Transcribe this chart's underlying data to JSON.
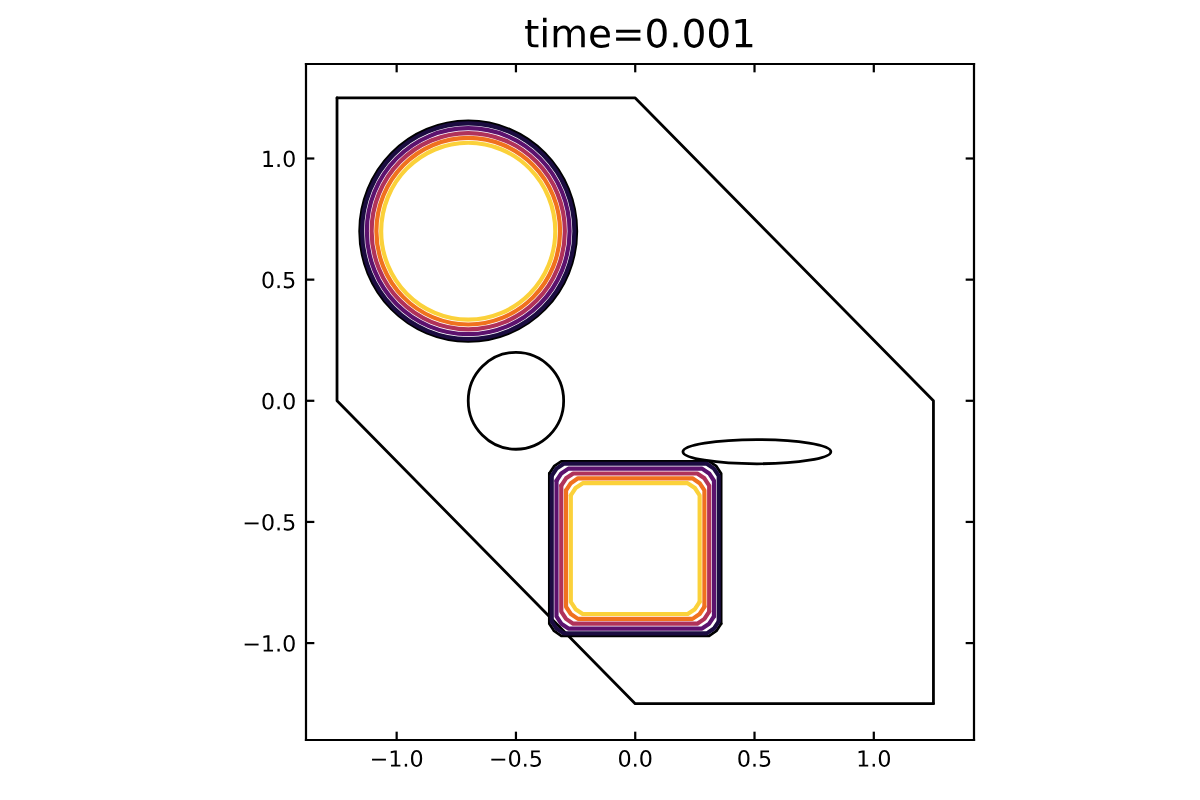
{
  "chart_data": {
    "type": "line",
    "title": "time=0.001",
    "xlim": [
      -1.38,
      1.42
    ],
    "ylim": [
      -1.4,
      1.39
    ],
    "xticks": [
      {
        "value": -1,
        "label": "−1.0"
      },
      {
        "value": -0.5,
        "label": "−0.5"
      },
      {
        "value": 0,
        "label": "0.0"
      },
      {
        "value": 0.5,
        "label": "0.5"
      },
      {
        "value": 1,
        "label": "1.0"
      }
    ],
    "yticks": [
      {
        "value": -1,
        "label": "−1.0"
      },
      {
        "value": -0.5,
        "label": "−0.5"
      },
      {
        "value": 0,
        "label": "0.0"
      },
      {
        "value": 0.5,
        "label": "0.5"
      },
      {
        "value": 1,
        "label": "1.0"
      }
    ],
    "grid": false,
    "series": [
      {
        "color": "#000000",
        "x": [
          -1.25,
          0,
          1.25,
          1.25
        ],
        "values": [
          1.25,
          1.25,
          0,
          -1.25
        ]
      },
      {
        "color": "#000000",
        "x": [
          1.25,
          0,
          -1.25,
          -1.25
        ],
        "values": [
          -1.25,
          -1.25,
          0,
          1.25
        ]
      },
      {
        "color": "#000000",
        "x": [
          0.36,
          0.36,
          0.34,
          0.31,
          -0.31,
          -0.34,
          -0.36
        ],
        "values": [
          -0.92,
          -0.3,
          -0.27,
          -0.25,
          -0.25,
          -0.27,
          -0.3
        ]
      },
      {
        "color": "#000000",
        "x": [
          -0.36,
          -0.36,
          -0.34,
          -0.31,
          0.31,
          0.34,
          0.36
        ],
        "values": [
          -0.3,
          -0.92,
          -0.95,
          -0.97,
          -0.97,
          -0.95,
          -0.92
        ]
      },
      {
        "color": "#1b0c41",
        "x": [
          0.35,
          0.35,
          0.33,
          0.3,
          -0.3,
          -0.33,
          -0.35
        ],
        "values": [
          -0.91,
          -0.31,
          -0.28,
          -0.26,
          -0.26,
          -0.28,
          -0.31
        ]
      },
      {
        "color": "#1b0c41",
        "x": [
          -0.35,
          -0.35,
          -0.33,
          -0.3,
          0.3,
          0.33,
          0.35
        ],
        "values": [
          -0.31,
          -0.91,
          -0.94,
          -0.96,
          -0.96,
          -0.94,
          -0.91
        ]
      },
      {
        "color": "#5c126e",
        "x": [
          0.33,
          0.33,
          0.31,
          0.28,
          -0.28,
          -0.31,
          -0.33
        ],
        "values": [
          -0.89,
          -0.33,
          -0.3,
          -0.28,
          -0.28,
          -0.3,
          -0.33
        ]
      },
      {
        "color": "#5c126e",
        "x": [
          -0.33,
          -0.33,
          -0.31,
          -0.28,
          0.28,
          0.31,
          0.33
        ],
        "values": [
          -0.33,
          -0.89,
          -0.92,
          -0.94,
          -0.94,
          -0.92,
          -0.89
        ]
      },
      {
        "color": "#b0325a",
        "x": [
          0.31,
          0.31,
          0.29,
          0.26,
          -0.26,
          -0.29,
          -0.31
        ],
        "values": [
          -0.87,
          -0.35,
          -0.32,
          -0.3,
          -0.3,
          -0.32,
          -0.35
        ]
      },
      {
        "color": "#b0325a",
        "x": [
          -0.31,
          -0.31,
          -0.29,
          -0.26,
          0.26,
          0.29,
          0.31
        ],
        "values": [
          -0.35,
          -0.87,
          -0.9,
          -0.92,
          -0.92,
          -0.9,
          -0.87
        ]
      },
      {
        "color": "#f0711e",
        "x": [
          0.29,
          0.29,
          0.27,
          0.24,
          -0.24,
          -0.27,
          -0.29
        ],
        "values": [
          -0.85,
          -0.37,
          -0.34,
          -0.32,
          -0.32,
          -0.34,
          -0.37
        ]
      },
      {
        "color": "#f0711e",
        "x": [
          -0.29,
          -0.29,
          -0.27,
          -0.24,
          0.24,
          0.27,
          0.29
        ],
        "values": [
          -0.37,
          -0.85,
          -0.88,
          -0.9,
          -0.9,
          -0.88,
          -0.85
        ]
      },
      {
        "color": "#fbd13a",
        "x": [
          0.27,
          0.27,
          0.25,
          0.22,
          -0.22,
          -0.25,
          -0.27
        ],
        "values": [
          -0.83,
          -0.39,
          -0.36,
          -0.34,
          -0.34,
          -0.36,
          -0.39
        ]
      },
      {
        "color": "#fbd13a",
        "x": [
          -0.27,
          -0.27,
          -0.25,
          -0.22,
          0.22,
          0.25,
          0.27
        ],
        "values": [
          -0.39,
          -0.83,
          -0.86,
          -0.88,
          -0.88,
          -0.86,
          -0.83
        ]
      }
    ]
  }
}
